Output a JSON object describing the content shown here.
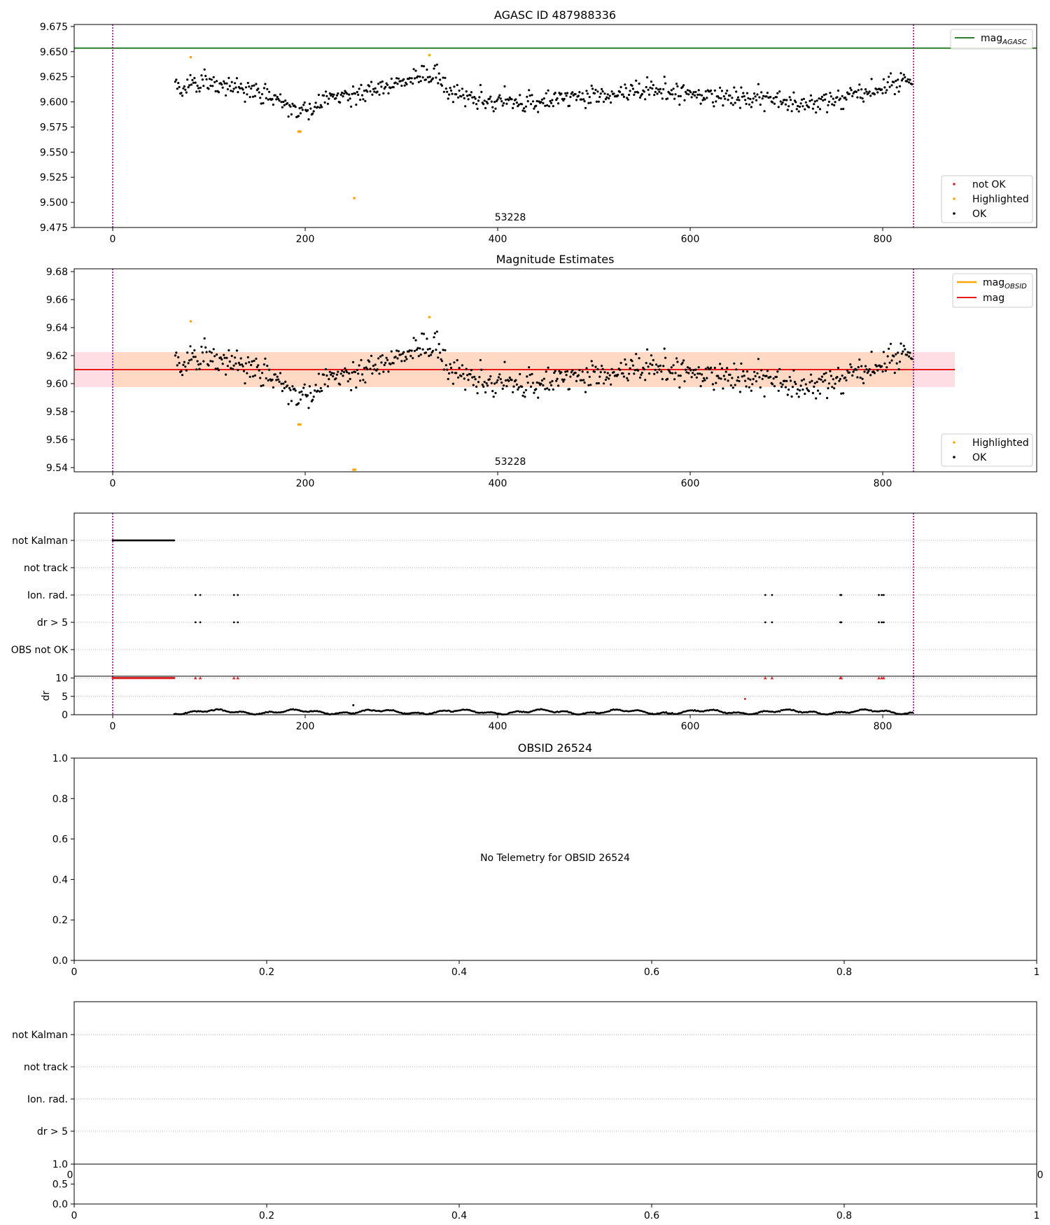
{
  "chart_data": [
    {
      "type": "scatter",
      "title": "AGASC ID 487988336",
      "annotation": "53228",
      "xlim": [
        -40,
        960
      ],
      "ylim": [
        9.475,
        9.677
      ],
      "xticks": [
        0,
        200,
        400,
        600,
        800
      ],
      "yticks": [
        9.475,
        9.5,
        9.525,
        9.55,
        9.575,
        9.6,
        9.625,
        9.65,
        9.675
      ],
      "ytick_decimals": 3,
      "vlines": [
        0,
        832
      ],
      "hlines": [
        {
          "name": "mag_AGASC",
          "value": 9.6535,
          "color": "#2a7f2a"
        }
      ],
      "legend_lines": [
        {
          "label": "mag",
          "sub": "AGASC",
          "color": "#2a7f2a"
        }
      ],
      "legend_points": [
        {
          "label": "not OK",
          "color": "#d62728"
        },
        {
          "label": "Highlighted",
          "color": "#ffa500"
        },
        {
          "label": "OK",
          "color": "#000000"
        }
      ],
      "series": [
        {
          "name": "OK",
          "color": "#000000",
          "points": "ok_mag"
        },
        {
          "name": "Highlighted",
          "color": "#ffa500",
          "points": [
            [
              81,
              9.6445
            ],
            [
              193,
              9.5705
            ],
            [
              195,
              9.5705
            ],
            [
              251,
              9.5042
            ],
            [
              329,
              9.6465
            ]
          ]
        }
      ]
    },
    {
      "type": "scatter",
      "title": "Magnitude Estimates",
      "annotation": "53228",
      "xlim": [
        -40,
        960
      ],
      "ylim": [
        9.537,
        9.682
      ],
      "xticks": [
        0,
        200,
        400,
        600,
        800
      ],
      "yticks": [
        9.54,
        9.56,
        9.58,
        9.6,
        9.62,
        9.64,
        9.66,
        9.68
      ],
      "ytick_decimals": 2,
      "vlines": [
        0,
        832
      ],
      "band": {
        "x_range": [
          -40,
          875
        ],
        "inner_x_range": [
          0,
          832
        ],
        "y_low": 9.5975,
        "y_high": 9.6225,
        "outer_color": "#ffdde4",
        "inner_color": "#ffd9c4"
      },
      "hlines": [
        {
          "name": "mag",
          "value": 9.61,
          "color": "#e8191b",
          "x_range": [
            -40,
            875
          ]
        }
      ],
      "legend_lines": [
        {
          "label": "mag",
          "sub": "OBSID",
          "color": "#ffa500"
        },
        {
          "label": "mag",
          "sub": "",
          "color": "#e8191b"
        }
      ],
      "legend_points": [
        {
          "label": "Highlighted",
          "color": "#ffa500"
        },
        {
          "label": "OK",
          "color": "#000000"
        }
      ],
      "series": [
        {
          "name": "OK",
          "color": "#000000",
          "points": "ok_mag"
        },
        {
          "name": "Highlighted",
          "color": "#ffa500",
          "points": [
            [
              81,
              9.6445
            ],
            [
              193,
              9.5708
            ],
            [
              195,
              9.5708
            ],
            [
              250,
              9.5385
            ],
            [
              252,
              9.5385
            ],
            [
              329,
              9.6475
            ]
          ]
        }
      ]
    },
    {
      "type": "scatter",
      "xlim": [
        -40,
        960
      ],
      "xticks": [
        0,
        200,
        400,
        600,
        800
      ],
      "vlines": [
        0,
        832
      ],
      "flag_rows": [
        "not Kalman",
        "not track",
        "Ion. rad.",
        "dr > 5",
        "OBS not OK"
      ],
      "flags": {
        "not Kalman": {
          "ranges": [
            [
              0,
              64
            ]
          ]
        },
        "Ion. rad.": {
          "xs": [
            86,
            91,
            126,
            130,
            678,
            685,
            756,
            757,
            796,
            799,
            801
          ]
        },
        "dr > 5": {
          "xs": [
            86,
            91,
            126,
            130,
            678,
            685,
            756,
            757,
            796,
            799,
            801
          ]
        }
      },
      "dr": {
        "ylabel": "dr",
        "ylim": [
          0,
          10.5
        ],
        "yticks": [
          0,
          5,
          10
        ],
        "capped_value": 10,
        "capped_ranges": [
          [
            0,
            64
          ]
        ],
        "capped_xs": [
          86,
          91,
          126,
          130,
          678,
          685,
          756,
          757,
          796,
          799,
          801
        ],
        "outliers": [
          [
            250,
            2.6
          ],
          [
            657,
            4.3
          ]
        ]
      }
    },
    {
      "type": "scatter",
      "title": "OBSID 26524",
      "message": "No Telemetry for OBSID 26524",
      "xlim": [
        0,
        1
      ],
      "ylim": [
        0,
        1
      ],
      "xticks": [
        0,
        0.2,
        0.4,
        0.6,
        0.8,
        1
      ],
      "yticks": [
        0,
        0.2,
        0.4,
        0.6,
        0.8,
        1
      ],
      "series": []
    },
    {
      "type": "scatter",
      "flag_rows": [
        "not Kalman",
        "not track",
        "Ion. rad.",
        "dr > 5"
      ],
      "top_partial_ticks": [
        "0",
        "0"
      ],
      "sub_ylim": [
        0,
        1
      ],
      "sub_yticks": [
        0,
        0.5,
        1
      ],
      "xlim": [
        0,
        1
      ],
      "xticks": [
        0,
        0.2,
        0.4,
        0.6,
        0.8,
        1
      ],
      "series": []
    }
  ]
}
